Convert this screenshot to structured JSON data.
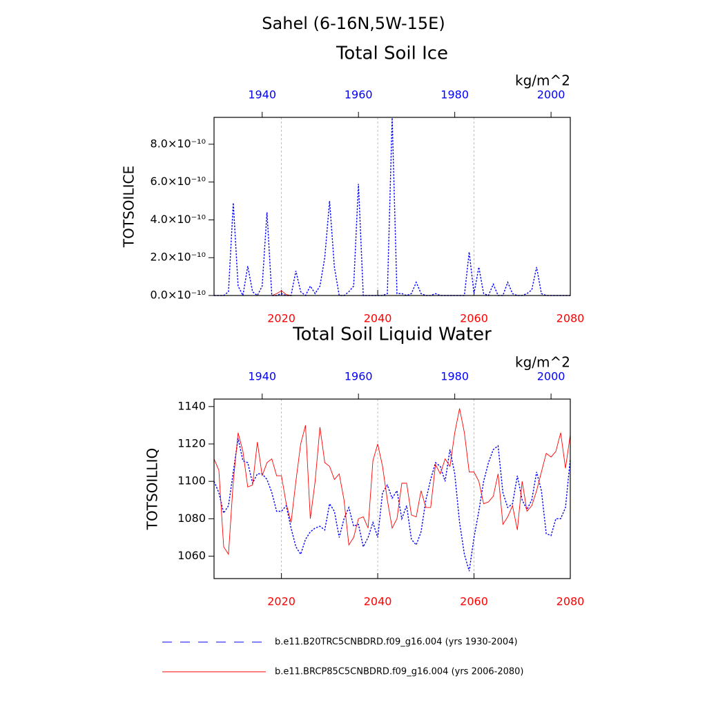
{
  "title": "Sahel (6-16N,5W-15E)",
  "legend": [
    {
      "name": "b.e11.B20TRC5CNBDRD.f09_g16.004 (yrs 1930-2004)",
      "color": "#0000ff",
      "dash": true
    },
    {
      "name": "b.e11.BRCP85C5CNBDRD.f09_g16.004 (yrs 2006-2080)",
      "color": "#ff0000",
      "dash": false
    }
  ],
  "chart_data": [
    {
      "type": "line",
      "title": "Total Soil Ice",
      "ylabel": "TOTSOILICE",
      "units": "kg/m^2",
      "x": [
        2006,
        2007,
        2008,
        2009,
        2010,
        2011,
        2012,
        2013,
        2014,
        2015,
        2016,
        2017,
        2018,
        2019,
        2020,
        2021,
        2022,
        2023,
        2024,
        2025,
        2026,
        2027,
        2028,
        2029,
        2030,
        2031,
        2032,
        2033,
        2034,
        2035,
        2036,
        2037,
        2038,
        2039,
        2040,
        2041,
        2042,
        2043,
        2044,
        2045,
        2046,
        2047,
        2048,
        2049,
        2050,
        2051,
        2052,
        2053,
        2054,
        2055,
        2056,
        2057,
        2058,
        2059,
        2060,
        2061,
        2062,
        2063,
        2064,
        2065,
        2066,
        2067,
        2068,
        2069,
        2070,
        2071,
        2072,
        2073,
        2074,
        2075,
        2076,
        2077,
        2078,
        2079,
        2080
      ],
      "x2": [
        1930,
        1931,
        1932,
        1933,
        1934,
        1935,
        1936,
        1937,
        1938,
        1939,
        1940,
        1941,
        1942,
        1943,
        1944,
        1945,
        1946,
        1947,
        1948,
        1949,
        1950,
        1951,
        1952,
        1953,
        1954,
        1955,
        1956,
        1957,
        1958,
        1959,
        1960,
        1961,
        1962,
        1963,
        1964,
        1965,
        1966,
        1967,
        1968,
        1969,
        1970,
        1971,
        1972,
        1973,
        1974,
        1975,
        1976,
        1977,
        1978,
        1979,
        1980,
        1981,
        1982,
        1983,
        1984,
        1985,
        1986,
        1987,
        1988,
        1989,
        1990,
        1991,
        1992,
        1993,
        1994,
        1995,
        1996,
        1997,
        1998,
        1999,
        2000,
        2001,
        2002,
        2003,
        2004
      ],
      "xlim": [
        2006,
        2080
      ],
      "x2lim": [
        1930,
        2004
      ],
      "xticks": [
        2020,
        2040,
        2060,
        2080
      ],
      "x2ticks": [
        1940,
        1960,
        1980,
        2000
      ],
      "xtick_color": "#ff0000",
      "x2tick_color": "#0000ff",
      "xgrid": true,
      "ylim": [
        0,
        9.42e-10
      ],
      "yticks": [
        {
          "value": 0,
          "label": "0.0×10⁻¹⁰"
        },
        {
          "value": 2e-10,
          "label": "2.0×10⁻¹⁰"
        },
        {
          "value": 4e-10,
          "label": "4.0×10⁻¹⁰"
        },
        {
          "value": 6e-10,
          "label": "6.0×10⁻¹⁰"
        },
        {
          "value": 8e-10,
          "label": "8.0×10⁻¹⁰"
        }
      ],
      "series": [
        {
          "axis": "x2",
          "values": [
            0,
            0,
            0,
            2e-11,
            4.9e-10,
            5e-11,
            0,
            1.55e-10,
            2e-11,
            0,
            5e-11,
            4.4e-10,
            0,
            0,
            1e-11,
            0,
            0,
            1.3e-10,
            2e-11,
            0,
            5e-11,
            1e-11,
            5e-11,
            2e-10,
            5e-10,
            1.5e-10,
            0,
            0,
            2e-11,
            5e-11,
            5.9e-10,
            0,
            0,
            0,
            0,
            0,
            1e-11,
            9.4e-10,
            1e-11,
            1e-11,
            0,
            1e-11,
            7e-11,
            1e-11,
            0,
            0,
            1e-11,
            0,
            0,
            0,
            0,
            0,
            0,
            2.3e-10,
            1e-11,
            1.5e-10,
            1e-11,
            0,
            6e-11,
            0,
            0,
            7e-11,
            1e-11,
            0,
            0,
            1e-11,
            3e-11,
            1.5e-10,
            1e-11,
            0,
            0,
            0,
            0,
            0,
            0
          ]
        },
        {
          "values": [
            0,
            0,
            0,
            0,
            0,
            0,
            0,
            0,
            0,
            0,
            0,
            0,
            0,
            1e-11,
            2.5e-11,
            5e-12,
            0,
            0,
            0,
            0,
            0,
            0,
            0,
            0,
            0,
            0,
            0,
            0,
            0,
            0,
            0,
            0,
            0,
            0,
            0,
            0,
            0,
            0,
            0,
            0,
            0,
            0,
            0,
            0,
            0,
            0,
            0,
            0,
            0,
            0,
            0,
            0,
            0,
            0,
            0,
            0,
            0,
            0,
            0,
            0,
            0,
            0,
            0,
            0,
            0,
            0,
            0,
            0,
            0,
            0,
            0,
            0,
            0,
            0,
            0
          ]
        }
      ]
    },
    {
      "type": "line",
      "title": "Total Soil Liquid Water",
      "ylabel": "TOTSOILLIQ",
      "units": "kg/m^2",
      "x": [
        2006,
        2007,
        2008,
        2009,
        2010,
        2011,
        2012,
        2013,
        2014,
        2015,
        2016,
        2017,
        2018,
        2019,
        2020,
        2021,
        2022,
        2023,
        2024,
        2025,
        2026,
        2027,
        2028,
        2029,
        2030,
        2031,
        2032,
        2033,
        2034,
        2035,
        2036,
        2037,
        2038,
        2039,
        2040,
        2041,
        2042,
        2043,
        2044,
        2045,
        2046,
        2047,
        2048,
        2049,
        2050,
        2051,
        2052,
        2053,
        2054,
        2055,
        2056,
        2057,
        2058,
        2059,
        2060,
        2061,
        2062,
        2063,
        2064,
        2065,
        2066,
        2067,
        2068,
        2069,
        2070,
        2071,
        2072,
        2073,
        2074,
        2075,
        2076,
        2077,
        2078,
        2079,
        2080
      ],
      "x2": [
        1930,
        1931,
        1932,
        1933,
        1934,
        1935,
        1936,
        1937,
        1938,
        1939,
        1940,
        1941,
        1942,
        1943,
        1944,
        1945,
        1946,
        1947,
        1948,
        1949,
        1950,
        1951,
        1952,
        1953,
        1954,
        1955,
        1956,
        1957,
        1958,
        1959,
        1960,
        1961,
        1962,
        1963,
        1964,
        1965,
        1966,
        1967,
        1968,
        1969,
        1970,
        1971,
        1972,
        1973,
        1974,
        1975,
        1976,
        1977,
        1978,
        1979,
        1980,
        1981,
        1982,
        1983,
        1984,
        1985,
        1986,
        1987,
        1988,
        1989,
        1990,
        1991,
        1992,
        1993,
        1994,
        1995,
        1996,
        1997,
        1998,
        1999,
        2000,
        2001,
        2002,
        2003,
        2004
      ],
      "xlim": [
        2006,
        2080
      ],
      "x2lim": [
        1930,
        2004
      ],
      "xticks": [
        2020,
        2040,
        2060,
        2080
      ],
      "x2ticks": [
        1940,
        1960,
        1980,
        2000
      ],
      "xtick_color": "#ff0000",
      "x2tick_color": "#0000ff",
      "xgrid": true,
      "ylim": [
        1048,
        1144
      ],
      "yticks": [
        1060,
        1080,
        1100,
        1120,
        1140
      ],
      "series": [
        {
          "axis": "x2",
          "values": [
            1100,
            1094,
            1083,
            1087,
            1105,
            1123,
            1111,
            1110,
            1099,
            1104,
            1104,
            1101,
            1094,
            1084,
            1084,
            1087,
            1075,
            1065,
            1061,
            1069,
            1073,
            1075,
            1076,
            1074,
            1088,
            1084,
            1070,
            1080,
            1086,
            1076,
            1077,
            1065,
            1070,
            1078,
            1070,
            1094,
            1098,
            1091,
            1095,
            1080,
            1087,
            1069,
            1066,
            1073,
            1090,
            1101,
            1110,
            1108,
            1100,
            1117,
            1104,
            1078,
            1061,
            1052,
            1070,
            1084,
            1100,
            1110,
            1117,
            1119,
            1094,
            1086,
            1088,
            1103,
            1090,
            1085,
            1090,
            1105,
            1095,
            1072,
            1071,
            1080,
            1080,
            1086,
            1112
          ]
        },
        {
          "values": [
            1112,
            1106,
            1065,
            1061,
            1100,
            1126,
            1116,
            1097,
            1098,
            1121,
            1103,
            1110,
            1112,
            1103,
            1103,
            1088,
            1078,
            1100,
            1120,
            1130,
            1080,
            1100,
            1129,
            1110,
            1108,
            1101,
            1104,
            1090,
            1066,
            1070,
            1080,
            1081,
            1075,
            1111,
            1120,
            1108,
            1090,
            1075,
            1080,
            1099,
            1099,
            1082,
            1081,
            1095,
            1086,
            1086,
            1109,
            1104,
            1112,
            1108,
            1126,
            1139,
            1126,
            1105,
            1105,
            1100,
            1088,
            1089,
            1092,
            1104,
            1077,
            1081,
            1087,
            1074,
            1100,
            1084,
            1087,
            1095,
            1105,
            1115,
            1113,
            1116,
            1126,
            1107,
            1125
          ]
        }
      ]
    }
  ]
}
